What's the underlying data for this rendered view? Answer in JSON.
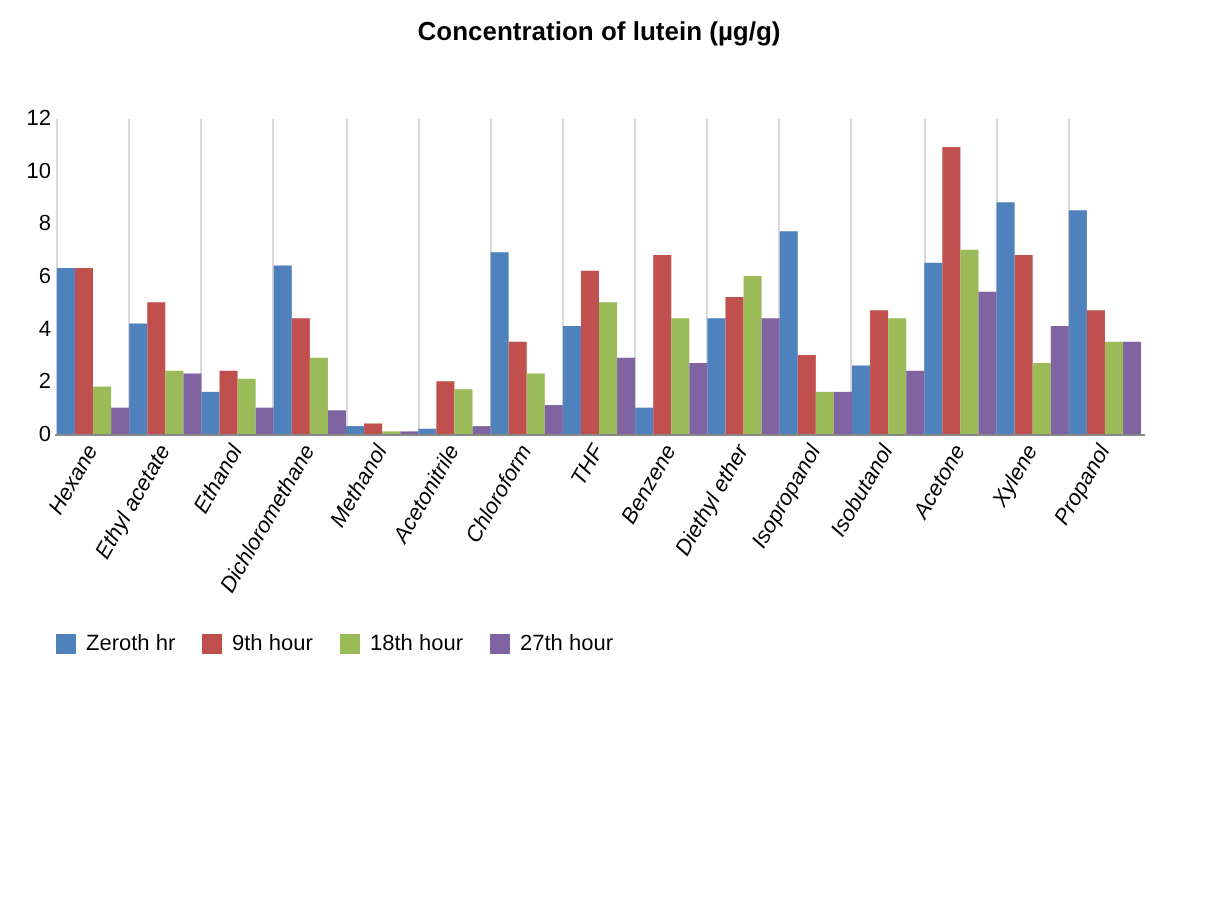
{
  "chart_data": {
    "type": "bar",
    "title": "Concentration of lutein (µg/g)",
    "categories": [
      "Hexane",
      "Ethyl acetate",
      "Ethanol",
      "Dichloromethane",
      "Methanol",
      "Acetonitrile",
      "Chloroform",
      "THF",
      "Benzene",
      "Diethyl ether",
      "Isopropanol",
      "Isobutanol",
      "Acetone",
      "Xylene",
      "Propanol"
    ],
    "series": [
      {
        "name": "Zeroth hr",
        "color": "#4f81bd",
        "values": [
          6.3,
          4.2,
          1.6,
          6.4,
          0.3,
          0.2,
          6.9,
          4.1,
          1.0,
          4.4,
          7.7,
          2.6,
          6.5,
          8.8,
          8.5
        ]
      },
      {
        "name": "9th hour",
        "color": "#c0504d",
        "values": [
          6.3,
          5.0,
          2.4,
          4.4,
          0.4,
          2.0,
          3.5,
          6.2,
          6.8,
          5.2,
          3.0,
          4.7,
          10.9,
          6.8,
          4.7
        ]
      },
      {
        "name": "18th hour",
        "color": "#9bbb59",
        "values": [
          1.8,
          2.4,
          2.1,
          2.9,
          0.1,
          1.7,
          2.3,
          5.0,
          4.4,
          6.0,
          1.6,
          4.4,
          7.0,
          2.7,
          3.5
        ]
      },
      {
        "name": "27th hour",
        "color": "#8064a2",
        "values": [
          1.0,
          2.3,
          1.0,
          0.9,
          0.1,
          0.3,
          1.1,
          2.9,
          2.7,
          4.4,
          1.6,
          2.4,
          5.4,
          4.1,
          3.5
        ]
      }
    ],
    "ylim": [
      0,
      12
    ],
    "yticks": [
      0,
      2,
      4,
      6,
      8,
      10,
      12
    ],
    "grid": "x",
    "legend": "bottom"
  }
}
